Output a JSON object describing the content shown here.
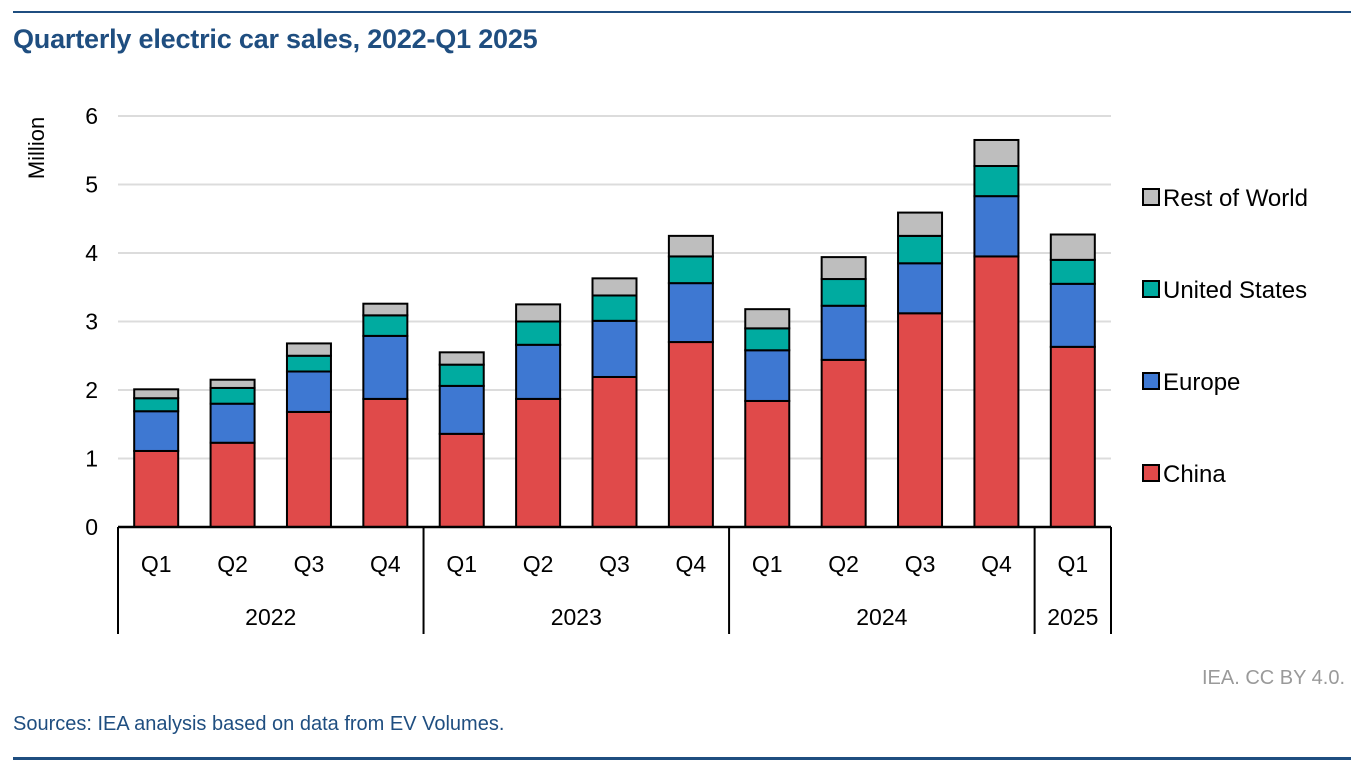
{
  "header": {
    "title": "Quarterly electric car sales, 2022-Q1 2025"
  },
  "footer": {
    "credit": "IEA. CC BY 4.0.",
    "source": "Sources: IEA analysis based on data from EV Volumes."
  },
  "chart_data": {
    "type": "bar",
    "stacked": true,
    "title": "Quarterly electric car sales, 2022-Q1 2025",
    "xlabel": "",
    "ylabel": "Million",
    "ylim": [
      0,
      6
    ],
    "yticks": [
      0,
      1,
      2,
      3,
      4,
      5,
      6
    ],
    "grid": true,
    "legend_position": "right",
    "categories": [
      "Q1",
      "Q2",
      "Q3",
      "Q4",
      "Q1",
      "Q2",
      "Q3",
      "Q4",
      "Q1",
      "Q2",
      "Q3",
      "Q4",
      "Q1"
    ],
    "groups": [
      {
        "label": "2022",
        "count": 4
      },
      {
        "label": "2023",
        "count": 4
      },
      {
        "label": "2024",
        "count": 4
      },
      {
        "label": "2025",
        "count": 1
      }
    ],
    "series": [
      {
        "name": "China",
        "color": "#e04a4a",
        "values": [
          1.11,
          1.23,
          1.68,
          1.87,
          1.36,
          1.87,
          2.19,
          2.7,
          1.84,
          2.44,
          3.12,
          3.95,
          2.63
        ]
      },
      {
        "name": "Europe",
        "color": "#3e78d2",
        "values": [
          0.58,
          0.57,
          0.59,
          0.92,
          0.7,
          0.79,
          0.82,
          0.86,
          0.74,
          0.79,
          0.73,
          0.88,
          0.92
        ]
      },
      {
        "name": "United States",
        "color": "#00aba0",
        "values": [
          0.19,
          0.23,
          0.23,
          0.3,
          0.31,
          0.34,
          0.37,
          0.39,
          0.32,
          0.39,
          0.4,
          0.44,
          0.35
        ]
      },
      {
        "name": "Rest of World",
        "color": "#bebebe",
        "values": [
          0.13,
          0.12,
          0.18,
          0.17,
          0.18,
          0.25,
          0.25,
          0.3,
          0.28,
          0.32,
          0.34,
          0.38,
          0.37
        ]
      }
    ],
    "legend_order": [
      "Rest of World",
      "United States",
      "Europe",
      "China"
    ]
  }
}
